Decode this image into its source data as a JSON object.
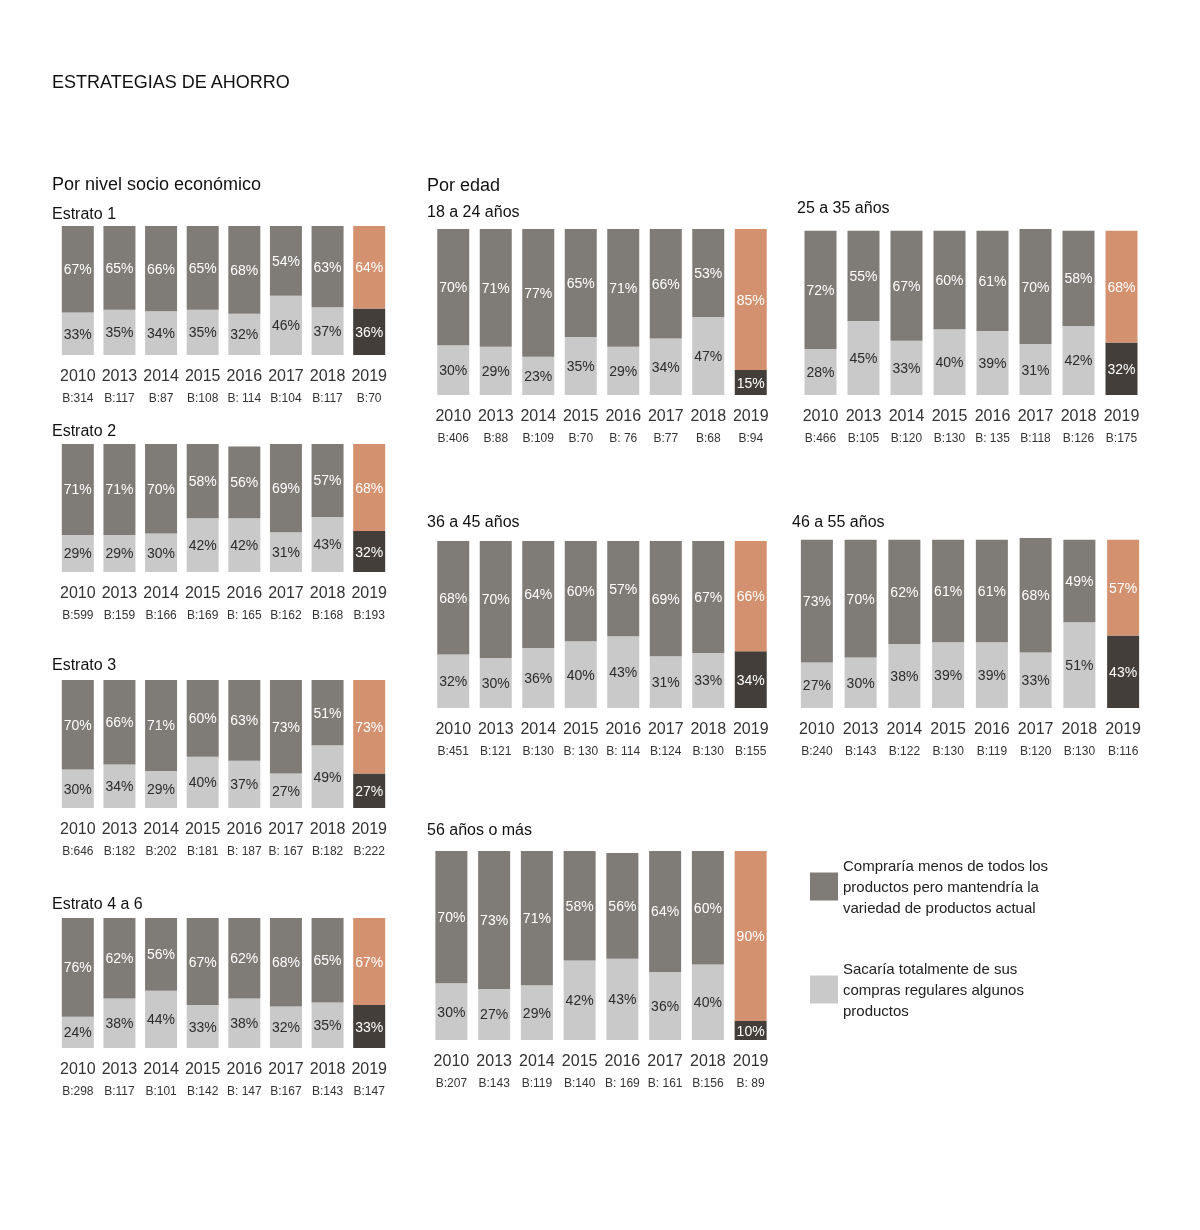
{
  "chart_data": [
    {
      "type": "bar",
      "stacked": true,
      "title": "Estrato 1",
      "annotations": [
        "ESTRATEGIAS DE AHORRO",
        "Por nivel socio económico"
      ],
      "categories": [
        "2010\nB:314",
        "2013\nB:117",
        "2014\nB:87",
        "2015\nB:108",
        "2016\nB: 114",
        "2017\nB:104",
        "2018\nB:117",
        "2019\nB:70"
      ],
      "ylim": [
        0,
        100
      ],
      "tick_labels": "x",
      "series": [
        {
          "color": "#c9c9c9",
          "colors": [
            "#c9c9c9",
            "#c9c9c9",
            "#c9c9c9",
            "#c9c9c9",
            "#c9c9c9",
            "#c9c9c9",
            "#c9c9c9",
            "#433e3a"
          ],
          "values": [
            33,
            35,
            34,
            35,
            32,
            46,
            37,
            36
          ],
          "value_labels": [
            "33%",
            "35%",
            "34%",
            "35%",
            "32%",
            "46%",
            "37%",
            "36%"
          ]
        },
        {
          "color": "#7f7b77",
          "colors": [
            "#7f7b77",
            "#7f7b77",
            "#7f7b77",
            "#7f7b77",
            "#7f7b77",
            "#7f7b77",
            "#7f7b77",
            "#d4916f"
          ],
          "values": [
            67,
            65,
            66,
            65,
            68,
            54,
            63,
            64
          ],
          "value_labels": [
            "67%",
            "65%",
            "66%",
            "65%",
            "68%",
            "54%",
            "63%",
            "64%"
          ]
        }
      ]
    },
    {
      "type": "bar",
      "stacked": true,
      "title": "Estrato 2",
      "categories": [
        "2010\nB:599",
        "2013\nB:159",
        "2014\nB:166",
        "2015\nB:169",
        "2016\nB: 165",
        "2017\nB:162",
        "2018\nB:168",
        "2019\nB:193"
      ],
      "ylim": [
        0,
        100
      ],
      "tick_labels": "x",
      "series": [
        {
          "color": "#c9c9c9",
          "colors": [
            "#c9c9c9",
            "#c9c9c9",
            "#c9c9c9",
            "#c9c9c9",
            "#c9c9c9",
            "#c9c9c9",
            "#c9c9c9",
            "#433e3a"
          ],
          "values": [
            29,
            29,
            30,
            42,
            42,
            31,
            43,
            32
          ],
          "value_labels": [
            "29%",
            "29%",
            "30%",
            "42%",
            "42%",
            "31%",
            "43%",
            "32%"
          ]
        },
        {
          "color": "#7f7b77",
          "colors": [
            "#7f7b77",
            "#7f7b77",
            "#7f7b77",
            "#7f7b77",
            "#7f7b77",
            "#7f7b77",
            "#7f7b77",
            "#d4916f"
          ],
          "values": [
            71,
            71,
            70,
            58,
            56,
            69,
            57,
            68
          ],
          "value_labels": [
            "71%",
            "71%",
            "70%",
            "58%",
            "56%",
            "69%",
            "57%",
            "68%"
          ]
        }
      ]
    },
    {
      "type": "bar",
      "stacked": true,
      "title": "Estrato 3",
      "categories": [
        "2010\nB:646",
        "2013\nB:182",
        "2014\nB:202",
        "2015\nB:181",
        "2016\nB: 187",
        "2017\nB: 167",
        "2018\nB:182",
        "2019\nB:222"
      ],
      "ylim": [
        0,
        100
      ],
      "tick_labels": "x",
      "series": [
        {
          "color": "#c9c9c9",
          "colors": [
            "#c9c9c9",
            "#c9c9c9",
            "#c9c9c9",
            "#c9c9c9",
            "#c9c9c9",
            "#c9c9c9",
            "#c9c9c9",
            "#433e3a"
          ],
          "values": [
            30,
            34,
            29,
            40,
            37,
            27,
            49,
            27
          ],
          "value_labels": [
            "30%",
            "34%",
            "29%",
            "40%",
            "37%",
            "27%",
            "49%",
            "27%"
          ]
        },
        {
          "color": "#7f7b77",
          "colors": [
            "#7f7b77",
            "#7f7b77",
            "#7f7b77",
            "#7f7b77",
            "#7f7b77",
            "#7f7b77",
            "#7f7b77",
            "#d4916f"
          ],
          "values": [
            70,
            66,
            71,
            60,
            63,
            73,
            51,
            73
          ],
          "value_labels": [
            "70%",
            "66%",
            "71%",
            "60%",
            "63%",
            "73%",
            "51%",
            "73%"
          ]
        }
      ]
    },
    {
      "type": "bar",
      "stacked": true,
      "title": "Estrato 4 a 6",
      "categories": [
        "2010\nB:298",
        "2013\nB:117",
        "2014\nB:101",
        "2015\nB:142",
        "2016\nB: 147",
        "2017\nB:167",
        "2018\nB:143",
        "2019\nB:147"
      ],
      "ylim": [
        0,
        100
      ],
      "tick_labels": "x",
      "series": [
        {
          "color": "#c9c9c9",
          "colors": [
            "#c9c9c9",
            "#c9c9c9",
            "#c9c9c9",
            "#c9c9c9",
            "#c9c9c9",
            "#c9c9c9",
            "#c9c9c9",
            "#433e3a"
          ],
          "values": [
            24,
            38,
            44,
            33,
            38,
            32,
            35,
            33
          ],
          "value_labels": [
            "24%",
            "38%",
            "44%",
            "33%",
            "38%",
            "32%",
            "35%",
            "33%"
          ]
        },
        {
          "color": "#7f7b77",
          "colors": [
            "#7f7b77",
            "#7f7b77",
            "#7f7b77",
            "#7f7b77",
            "#7f7b77",
            "#7f7b77",
            "#7f7b77",
            "#d4916f"
          ],
          "values": [
            76,
            62,
            56,
            67,
            62,
            68,
            65,
            67
          ],
          "value_labels": [
            "76%",
            "62%",
            "56%",
            "67%",
            "62%",
            "68%",
            "65%",
            "67%"
          ]
        }
      ]
    },
    {
      "type": "bar",
      "stacked": true,
      "title": "18 a 24 años",
      "annotations": [
        "Por edad"
      ],
      "categories": [
        "2010\nB:406",
        "2013\nB:88",
        "2014\nB:109",
        "2015\nB:70",
        "2016\nB: 76",
        "2017\nB:77",
        "2018\nB:68",
        "2019\nB:94"
      ],
      "ylim": [
        0,
        100
      ],
      "tick_labels": "x",
      "series": [
        {
          "color": "#c9c9c9",
          "colors": [
            "#c9c9c9",
            "#c9c9c9",
            "#c9c9c9",
            "#c9c9c9",
            "#c9c9c9",
            "#c9c9c9",
            "#c9c9c9",
            "#433e3a"
          ],
          "values": [
            30,
            29,
            23,
            35,
            29,
            34,
            47,
            15
          ],
          "value_labels": [
            "30%",
            "29%",
            "23%",
            "35%",
            "29%",
            "34%",
            "47%",
            "15%"
          ]
        },
        {
          "color": "#7f7b77",
          "colors": [
            "#7f7b77",
            "#7f7b77",
            "#7f7b77",
            "#7f7b77",
            "#7f7b77",
            "#7f7b77",
            "#7f7b77",
            "#d4916f"
          ],
          "values": [
            70,
            71,
            77,
            65,
            71,
            66,
            53,
            85
          ],
          "value_labels": [
            "70%",
            "71%",
            "77%",
            "65%",
            "71%",
            "66%",
            "53%",
            "85%"
          ]
        }
      ]
    },
    {
      "type": "bar",
      "stacked": true,
      "title": "25 a 35 años",
      "categories": [
        "2010\nB:466",
        "2013\nB:105",
        "2014\nB:120",
        "2015\nB:130",
        "2016\nB: 135",
        "2017\nB:118",
        "2018\nB:126",
        "2019\nB:175"
      ],
      "ylim": [
        0,
        101
      ],
      "tick_labels": "x",
      "series": [
        {
          "color": "#c9c9c9",
          "colors": [
            "#c9c9c9",
            "#c9c9c9",
            "#c9c9c9",
            "#c9c9c9",
            "#c9c9c9",
            "#c9c9c9",
            "#c9c9c9",
            "#433e3a"
          ],
          "values": [
            28,
            45,
            33,
            40,
            39,
            31,
            42,
            32
          ],
          "value_labels": [
            "28%",
            "45%",
            "33%",
            "40%",
            "39%",
            "31%",
            "42%",
            "32%"
          ]
        },
        {
          "color": "#7f7b77",
          "colors": [
            "#7f7b77",
            "#7f7b77",
            "#7f7b77",
            "#7f7b77",
            "#7f7b77",
            "#7f7b77",
            "#7f7b77",
            "#d4916f"
          ],
          "values": [
            72,
            55,
            67,
            60,
            61,
            70,
            58,
            68
          ],
          "value_labels": [
            "72%",
            "55%",
            "67%",
            "60%",
            "61%",
            "70%",
            "58%",
            "68%"
          ]
        }
      ]
    },
    {
      "type": "bar",
      "stacked": true,
      "title": "36 a 45 años",
      "categories": [
        "2010\nB:451",
        "2013\nB:121",
        "2014\nB:130",
        "2015\nB: 130",
        "2016\nB: 114",
        "2017\nB:124",
        "2018\nB:130",
        "2019\nB:155"
      ],
      "ylim": [
        0,
        100
      ],
      "tick_labels": "x",
      "series": [
        {
          "color": "#c9c9c9",
          "colors": [
            "#c9c9c9",
            "#c9c9c9",
            "#c9c9c9",
            "#c9c9c9",
            "#c9c9c9",
            "#c9c9c9",
            "#c9c9c9",
            "#433e3a"
          ],
          "values": [
            32,
            30,
            36,
            40,
            43,
            31,
            33,
            34
          ],
          "value_labels": [
            "32%",
            "30%",
            "36%",
            "40%",
            "43%",
            "31%",
            "33%",
            "34%"
          ]
        },
        {
          "color": "#7f7b77",
          "colors": [
            "#7f7b77",
            "#7f7b77",
            "#7f7b77",
            "#7f7b77",
            "#7f7b77",
            "#7f7b77",
            "#7f7b77",
            "#d4916f"
          ],
          "values": [
            68,
            70,
            64,
            60,
            57,
            69,
            67,
            66
          ],
          "value_labels": [
            "68%",
            "70%",
            "64%",
            "60%",
            "57%",
            "69%",
            "67%",
            "66%"
          ]
        }
      ]
    },
    {
      "type": "bar",
      "stacked": true,
      "title": "46 a 55 años",
      "categories": [
        "2010\nB:240",
        "2013\nB:143",
        "2014\nB:122",
        "2015\nB:130",
        "2016\nB:119",
        "2017\nB:120",
        "2018\nB:130",
        "2019\nB:116"
      ],
      "ylim": [
        0,
        101
      ],
      "tick_labels": "x",
      "series": [
        {
          "color": "#c9c9c9",
          "colors": [
            "#c9c9c9",
            "#c9c9c9",
            "#c9c9c9",
            "#c9c9c9",
            "#c9c9c9",
            "#c9c9c9",
            "#c9c9c9",
            "#433e3a"
          ],
          "values": [
            27,
            30,
            38,
            39,
            39,
            33,
            51,
            43
          ],
          "value_labels": [
            "27%",
            "30%",
            "38%",
            "39%",
            "39%",
            "33%",
            "51%",
            "43%"
          ]
        },
        {
          "color": "#7f7b77",
          "colors": [
            "#7f7b77",
            "#7f7b77",
            "#7f7b77",
            "#7f7b77",
            "#7f7b77",
            "#7f7b77",
            "#7f7b77",
            "#d4916f"
          ],
          "values": [
            73,
            70,
            62,
            61,
            61,
            68,
            49,
            57
          ],
          "value_labels": [
            "73%",
            "70%",
            "62%",
            "61%",
            "61%",
            "68%",
            "49%",
            "57%"
          ]
        }
      ]
    },
    {
      "type": "bar",
      "stacked": true,
      "title": "56 años o más",
      "categories": [
        "2010\nB:207",
        "2013\nB:143",
        "2014\nB:119",
        "2015\nB:140",
        "2016\nB: 169",
        "2017\nB: 161",
        "2018\nB:156",
        "2019\nB: 89"
      ],
      "ylim": [
        0,
        100
      ],
      "tick_labels": "x",
      "legend": "right",
      "series": [
        {
          "name": "Sacaría totalmente de sus compras regulares algunos productos",
          "color": "#c9c9c9",
          "colors": [
            "#c9c9c9",
            "#c9c9c9",
            "#c9c9c9",
            "#c9c9c9",
            "#c9c9c9",
            "#c9c9c9",
            "#c9c9c9",
            "#433e3a"
          ],
          "values": [
            30,
            27,
            29,
            42,
            43,
            36,
            40,
            10
          ],
          "value_labels": [
            "30%",
            "27%",
            "29%",
            "42%",
            "43%",
            "36%",
            "40%",
            "10%"
          ]
        },
        {
          "name": "Compraría menos de todos los productos pero mantendría la variedad de productos actual",
          "color": "#7f7b77",
          "colors": [
            "#7f7b77",
            "#7f7b77",
            "#7f7b77",
            "#7f7b77",
            "#7f7b77",
            "#7f7b77",
            "#7f7b77",
            "#d4916f"
          ],
          "values": [
            70,
            73,
            71,
            58,
            56,
            64,
            60,
            90
          ],
          "value_labels": [
            "70%",
            "73%",
            "71%",
            "58%",
            "56%",
            "64%",
            "60%",
            "90%"
          ]
        }
      ]
    }
  ]
}
